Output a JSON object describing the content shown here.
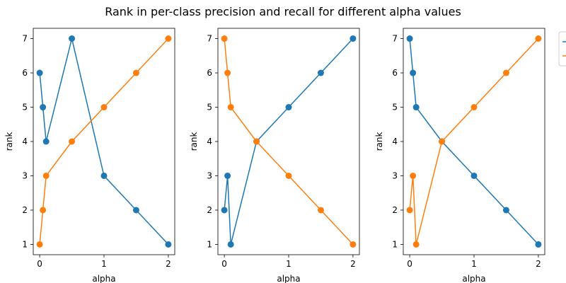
{
  "colors": {
    "series_a": "#1f77b4",
    "series_b": "#ff7f0e",
    "axes": "#000000",
    "background": "#ffffff"
  },
  "chart_data": {
    "title": "Rank in per-class precision and recall for different alpha values",
    "type": "line",
    "legend": "outside right, partially cropped",
    "grid": false,
    "panels": [
      {
        "xlabel": "alpha",
        "ylabel": "rank",
        "xlim": [
          -0.1,
          2.1
        ],
        "ylim": [
          0.7,
          7.3
        ],
        "xticks": [
          0,
          1,
          2
        ],
        "yticks": [
          1,
          2,
          3,
          4,
          5,
          6,
          7
        ],
        "x": [
          0.0,
          0.05,
          0.1,
          0.5,
          1.0,
          1.5,
          2.0
        ],
        "series": [
          {
            "values": [
              6,
              5,
              4,
              7,
              3,
              2,
              1
            ]
          },
          {
            "values": [
              1,
              2,
              3,
              4,
              5,
              6,
              7
            ]
          }
        ]
      },
      {
        "xlabel": "alpha",
        "ylabel": "rank",
        "xlim": [
          -0.1,
          2.1
        ],
        "ylim": [
          0.7,
          7.3
        ],
        "xticks": [
          0,
          1,
          2
        ],
        "yticks": [
          1,
          2,
          3,
          4,
          5,
          6,
          7
        ],
        "x": [
          0.0,
          0.05,
          0.1,
          0.5,
          1.0,
          1.5,
          2.0
        ],
        "series": [
          {
            "values": [
              2,
              3,
              1,
              4,
              5,
              6,
              7
            ]
          },
          {
            "values": [
              7,
              6,
              5,
              4,
              3,
              2,
              1
            ]
          }
        ]
      },
      {
        "xlabel": "alpha",
        "ylabel": "rank",
        "xlim": [
          -0.1,
          2.1
        ],
        "ylim": [
          0.7,
          7.3
        ],
        "xticks": [
          0,
          1,
          2
        ],
        "yticks": [
          1,
          2,
          3,
          4,
          5,
          6,
          7
        ],
        "x": [
          0.0,
          0.05,
          0.1,
          0.5,
          1.0,
          1.5,
          2.0
        ],
        "series": [
          {
            "values": [
              7,
              6,
              5,
              4,
              3,
              2,
              1
            ]
          },
          {
            "values": [
              2,
              3,
              1,
              4,
              5,
              6,
              7
            ]
          }
        ]
      }
    ]
  }
}
